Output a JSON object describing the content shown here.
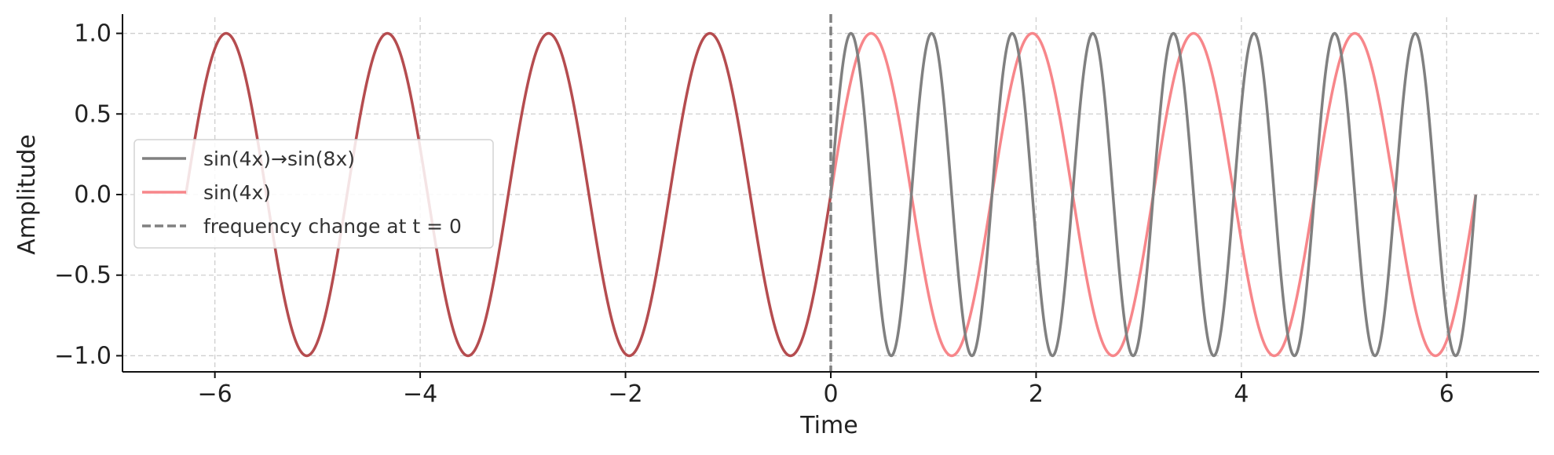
{
  "chart_data": {
    "type": "line",
    "title": "",
    "xlabel": "Time",
    "ylabel": "Amplitude",
    "xlim": [
      -6.9,
      6.9
    ],
    "ylim": [
      -1.1,
      1.1
    ],
    "xticks": [
      -6,
      -4,
      -2,
      0,
      2,
      4,
      6
    ],
    "xtick_labels": [
      "−6",
      "−4",
      "−2",
      "0",
      "2",
      "4",
      "6"
    ],
    "yticks": [
      1.0,
      0.5,
      0.0,
      -0.5,
      -1.0
    ],
    "ytick_labels": [
      "1.0",
      "0.5",
      "0.0",
      "−0.5",
      "−1.0"
    ],
    "grid": true,
    "legend_position": "center-left",
    "series": [
      {
        "name": "sin(4x)→sin(8x)",
        "legend_label": "sin(4x)→sin(8x)",
        "function_before": "sin(4x)",
        "function_after": "sin(8x)",
        "change_at": 0,
        "x_range": [
          -6.283,
          6.283
        ],
        "color": "#808080",
        "style": "solid"
      },
      {
        "name": "sin(4x)",
        "legend_label": "sin(4x)",
        "function": "sin(4x)",
        "x_range": [
          -6.283,
          6.283
        ],
        "color": "#f7868a",
        "style": "solid"
      }
    ],
    "vline": {
      "x": 0,
      "label": "frequency change at t = 0",
      "color": "#808080",
      "style": "dashed"
    },
    "overlap_color": "#b54c4f"
  }
}
